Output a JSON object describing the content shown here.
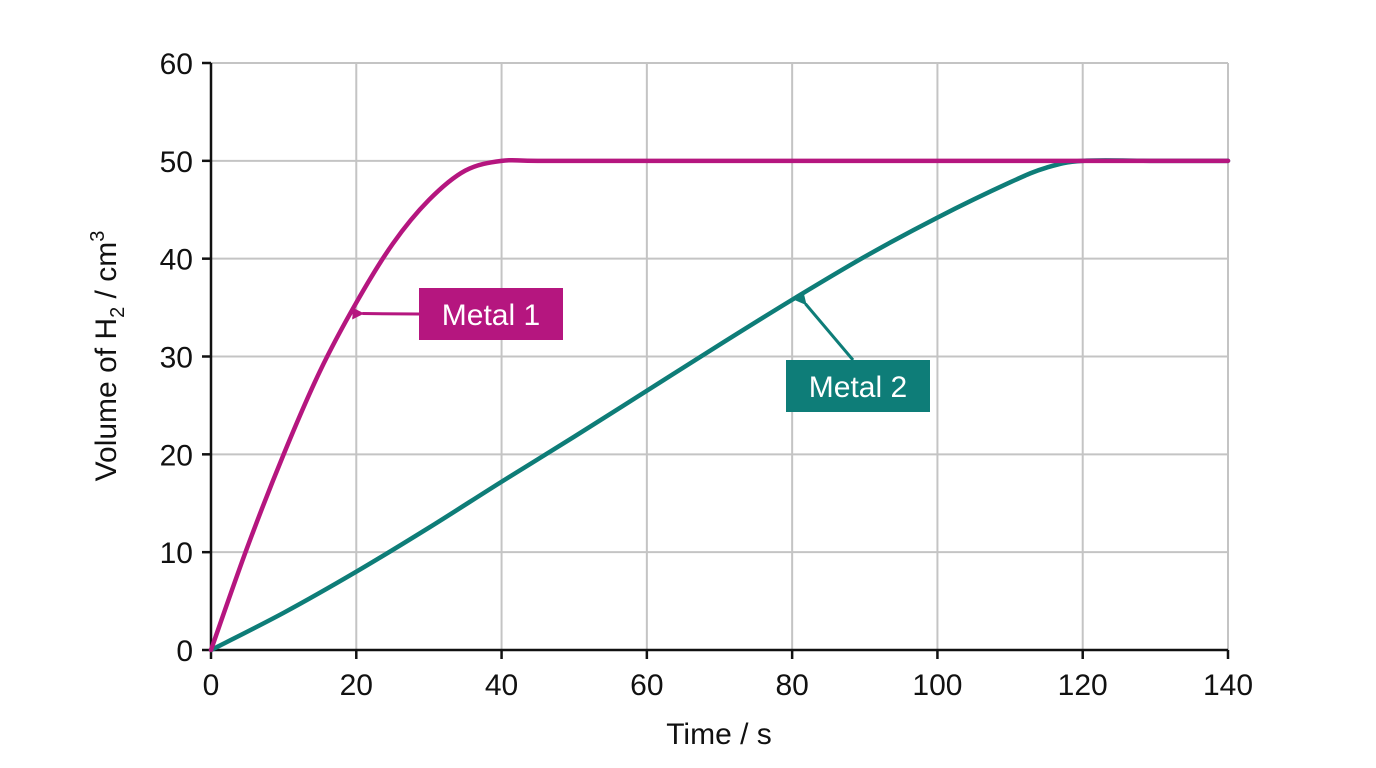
{
  "chart_data": {
    "type": "line",
    "xlabel": "Time / s",
    "ylabel": {
      "prefix": "Volume of H",
      "subscript": "2",
      "middle": " / cm",
      "superscript": "3"
    },
    "xlim": [
      0,
      140
    ],
    "ylim": [
      0,
      60
    ],
    "x_ticks": [
      "0",
      "20",
      "40",
      "60",
      "80",
      "100",
      "120",
      "140"
    ],
    "y_ticks": [
      "0",
      "10",
      "20",
      "30",
      "40",
      "50",
      "60"
    ],
    "grid": true,
    "series": [
      {
        "name": "Metal 1",
        "color": "#b5167f",
        "x": [
          0,
          5,
          10,
          15,
          20,
          25,
          30,
          35,
          40,
          45,
          60,
          80,
          100,
          120,
          140
        ],
        "y": [
          0,
          10.5,
          20,
          28.5,
          35.5,
          41.5,
          46,
          49,
          50,
          50,
          50,
          50,
          50,
          50,
          50
        ]
      },
      {
        "name": "Metal 2",
        "color": "#0e7d78",
        "x": [
          0,
          10,
          20,
          30,
          40,
          50,
          60,
          70,
          80,
          90,
          100,
          110,
          115,
          120,
          130,
          140
        ],
        "y": [
          0,
          3.8,
          8,
          12.5,
          17.2,
          21.8,
          26.5,
          31.2,
          35.8,
          40.2,
          44.2,
          47.8,
          49.3,
          50,
          50,
          50
        ]
      }
    ],
    "callouts": [
      {
        "text": "Metal 1",
        "series": "Metal 1",
        "point": [
          20,
          34.8
        ]
      },
      {
        "text": "Metal 2",
        "series": "Metal 2",
        "point": [
          81,
          35.8
        ]
      }
    ]
  }
}
